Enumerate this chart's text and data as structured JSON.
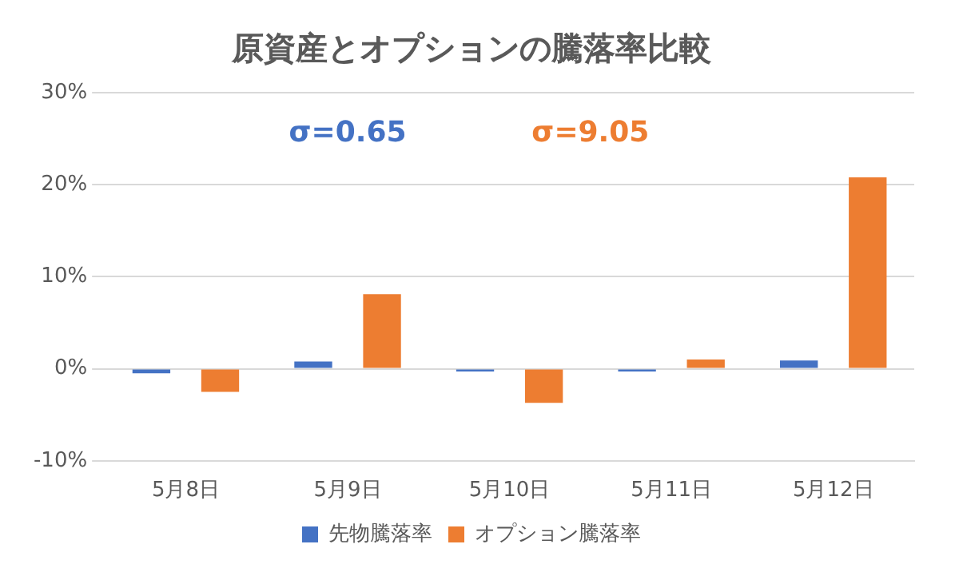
{
  "chart_data": {
    "type": "bar",
    "title": "原資産とオプションの騰落率比較",
    "categories": [
      "5月8日",
      "5月9日",
      "5月10日",
      "5月11日",
      "5月12日"
    ],
    "series": [
      {
        "name": "先物騰落率",
        "color": "#4472c4",
        "values": [
          -0.5,
          0.8,
          -0.3,
          -0.3,
          0.9
        ]
      },
      {
        "name": "オプション騰落率",
        "color": "#ed7d31",
        "values": [
          -2.5,
          8.1,
          -3.7,
          1.0,
          20.8
        ]
      }
    ],
    "ylim": [
      -10,
      30
    ],
    "yticks": [
      {
        "value": -10,
        "label": "-10%"
      },
      {
        "value": 0,
        "label": "0%"
      },
      {
        "value": 10,
        "label": "10%"
      },
      {
        "value": 20,
        "label": "20%"
      },
      {
        "value": 30,
        "label": "30%"
      }
    ],
    "grid": "y",
    "legend": "bottom",
    "annotations": [
      "σ=0.65",
      "σ=9.05"
    ]
  }
}
